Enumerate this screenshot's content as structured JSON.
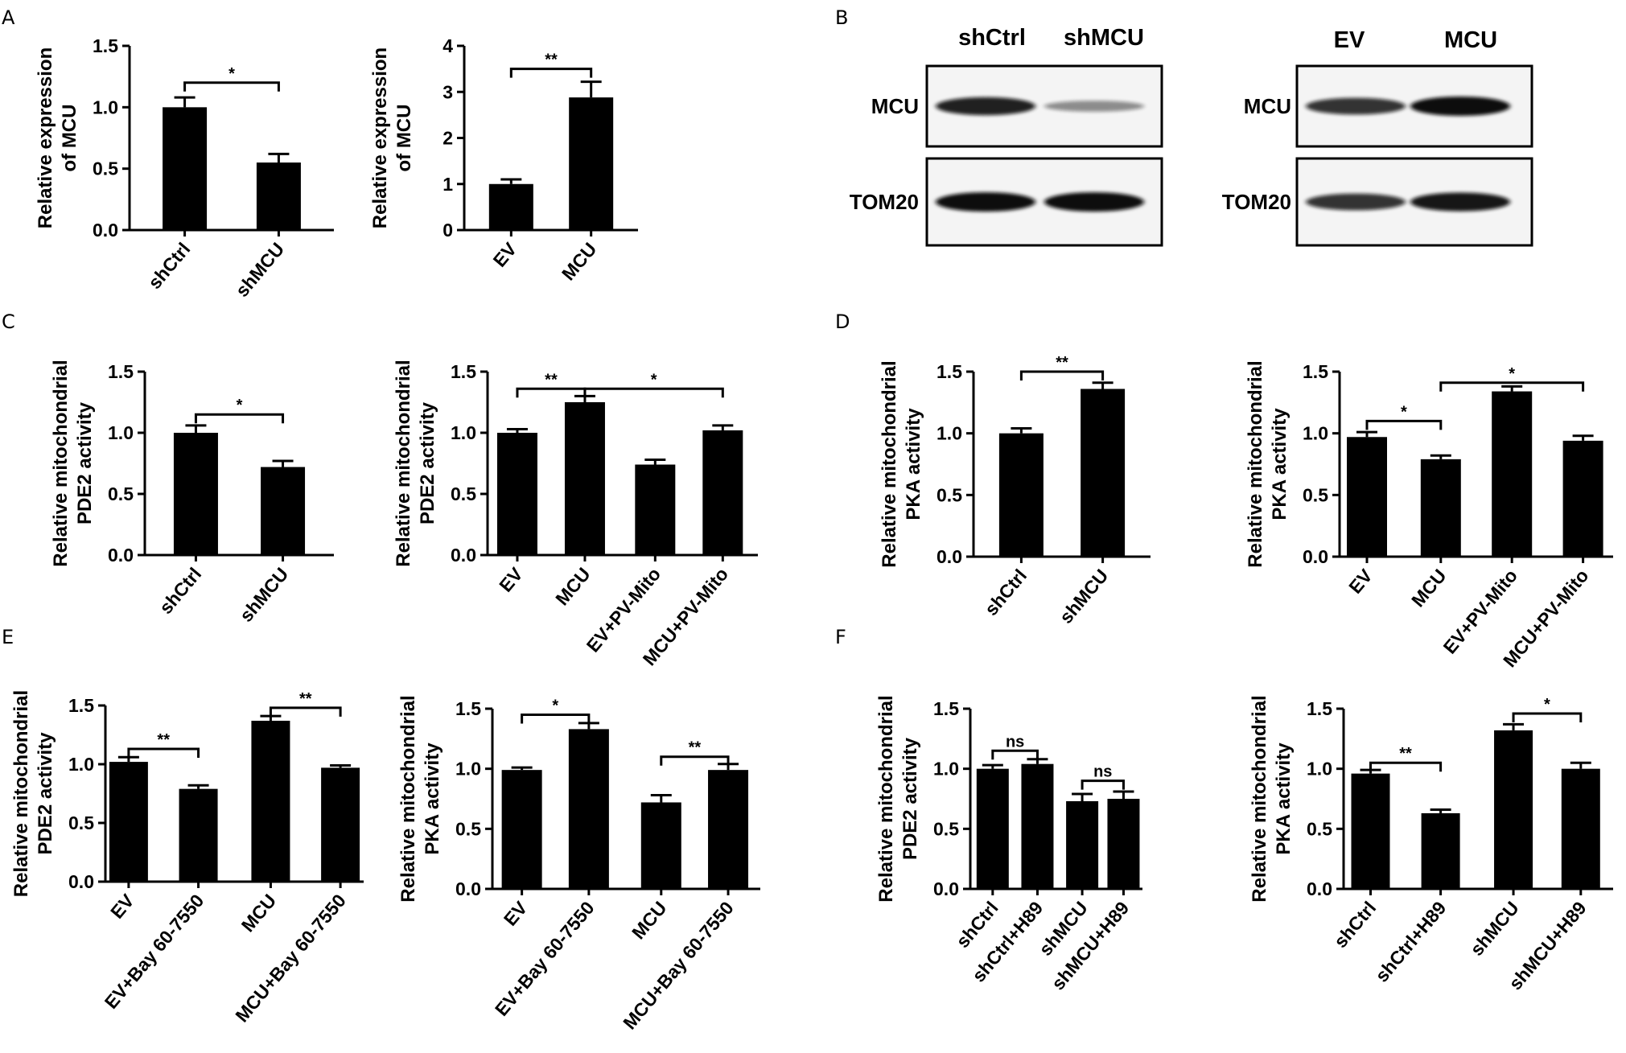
{
  "panel_letters": [
    "A",
    "B",
    "C",
    "D",
    "E",
    "F"
  ],
  "chart_data": [
    {
      "id": "A1",
      "type": "bar",
      "panel": "A",
      "ylabel_lines": [
        "Relative expression",
        "of MCU"
      ],
      "ylim": [
        0,
        1.5
      ],
      "yticks": [
        "0.0",
        "0.5",
        "1.0",
        "1.5"
      ],
      "categories": [
        "shCtrl",
        "shMCU"
      ],
      "values": [
        1.0,
        0.55
      ],
      "errors": [
        0.08,
        0.07
      ],
      "significance": [
        {
          "from": 0,
          "to": 1,
          "label": "*",
          "y": 1.2
        }
      ]
    },
    {
      "id": "A2",
      "type": "bar",
      "panel": "A",
      "ylabel_lines": [
        "Relative expression",
        "of MCU"
      ],
      "ylim": [
        0,
        4
      ],
      "yticks": [
        "0",
        "1",
        "2",
        "3",
        "4"
      ],
      "categories": [
        "EV",
        "MCU"
      ],
      "values": [
        1.0,
        2.88
      ],
      "errors": [
        0.1,
        0.34
      ],
      "significance": [
        {
          "from": 0,
          "to": 1,
          "label": "**",
          "y": 3.5
        }
      ]
    },
    {
      "id": "C1",
      "type": "bar",
      "panel": "C",
      "ylabel_lines": [
        "Relative mitochondrial",
        "PDE2 activity"
      ],
      "ylim": [
        0,
        1.5
      ],
      "yticks": [
        "0.0",
        "0.5",
        "1.0",
        "1.5"
      ],
      "categories": [
        "shCtrl",
        "shMCU"
      ],
      "values": [
        1.0,
        0.72
      ],
      "errors": [
        0.06,
        0.05
      ],
      "significance": [
        {
          "from": 0,
          "to": 1,
          "label": "*",
          "y": 1.15
        }
      ]
    },
    {
      "id": "C2",
      "type": "bar",
      "panel": "C",
      "ylabel_lines": [
        "Relative mitochondrial",
        "PDE2 activity"
      ],
      "ylim": [
        0,
        1.5
      ],
      "yticks": [
        "0.0",
        "0.5",
        "1.0",
        "1.5"
      ],
      "categories": [
        "EV",
        "MCU",
        "EV+PV-Mito",
        "MCU+PV-Mito"
      ],
      "values": [
        1.0,
        1.25,
        0.74,
        1.02
      ],
      "errors": [
        0.03,
        0.05,
        0.04,
        0.04
      ],
      "significance": [
        {
          "from": 0,
          "to": 1,
          "label": "**",
          "y": 1.36
        },
        {
          "from": 1,
          "to": 3,
          "label": "*",
          "y": 1.36
        }
      ]
    },
    {
      "id": "D1",
      "type": "bar",
      "panel": "D",
      "ylabel_lines": [
        "Relative mitochondrial",
        "PKA activity"
      ],
      "ylim": [
        0,
        1.5
      ],
      "yticks": [
        "0.0",
        "0.5",
        "1.0",
        "1.5"
      ],
      "categories": [
        "shCtrl",
        "shMCU"
      ],
      "values": [
        1.0,
        1.36
      ],
      "errors": [
        0.04,
        0.05
      ],
      "significance": [
        {
          "from": 0,
          "to": 1,
          "label": "**",
          "y": 1.5
        }
      ]
    },
    {
      "id": "D2",
      "type": "bar",
      "panel": "D",
      "ylabel_lines": [
        "Relative mitochondrial",
        "PKA activity"
      ],
      "ylim": [
        0,
        1.5
      ],
      "yticks": [
        "0.0",
        "0.5",
        "1.0",
        "1.5"
      ],
      "categories": [
        "EV",
        "MCU",
        "EV+PV-Mito",
        "MCU+PV-Mito"
      ],
      "values": [
        0.97,
        0.79,
        1.34,
        0.94
      ],
      "errors": [
        0.04,
        0.03,
        0.04,
        0.04
      ],
      "significance": [
        {
          "from": 0,
          "to": 1,
          "label": "*",
          "y": 1.1
        },
        {
          "from": 1,
          "to": 3,
          "label": "*",
          "y": 1.41
        }
      ]
    },
    {
      "id": "E1",
      "type": "bar",
      "panel": "E",
      "ylabel_lines": [
        "Relative mitochondrial",
        "PDE2 activity"
      ],
      "ylim": [
        0,
        1.5
      ],
      "yticks": [
        "0.0",
        "0.5",
        "1.0",
        "1.5"
      ],
      "categories": [
        "EV",
        "EV+Bay 60-7550",
        "MCU",
        "MCU+Bay 60-7550"
      ],
      "values": [
        1.02,
        0.79,
        1.37,
        0.97
      ],
      "errors": [
        0.04,
        0.03,
        0.04,
        0.02
      ],
      "significance": [
        {
          "from": 0,
          "to": 1,
          "label": "**",
          "y": 1.13
        },
        {
          "from": 2,
          "to": 3,
          "label": "**",
          "y": 1.48
        }
      ]
    },
    {
      "id": "E2",
      "type": "bar",
      "panel": "E",
      "ylabel_lines": [
        "Relative mitochondrial",
        "PKA activity"
      ],
      "ylim": [
        0,
        1.5
      ],
      "yticks": [
        "0.0",
        "0.5",
        "1.0",
        "1.5"
      ],
      "categories": [
        "EV",
        "EV+Bay 60-7550",
        "MCU",
        "MCU+Bay 60-7550"
      ],
      "values": [
        0.99,
        1.33,
        0.72,
        0.99
      ],
      "errors": [
        0.02,
        0.05,
        0.06,
        0.05
      ],
      "significance": [
        {
          "from": 0,
          "to": 1,
          "label": "*",
          "y": 1.45
        },
        {
          "from": 2,
          "to": 3,
          "label": "**",
          "y": 1.1
        }
      ]
    },
    {
      "id": "F1",
      "type": "bar",
      "panel": "F",
      "ylabel_lines": [
        "Relative mitochondrial",
        "PDE2 activity"
      ],
      "ylim": [
        0,
        1.5
      ],
      "yticks": [
        "0.0",
        "0.5",
        "1.0",
        "1.5"
      ],
      "categories": [
        "shCtrl",
        "shCtrl+H89",
        "shMCU",
        "shMCU+H89"
      ],
      "values": [
        1.0,
        1.04,
        0.73,
        0.75
      ],
      "errors": [
        0.03,
        0.04,
        0.06,
        0.06
      ],
      "significance": [
        {
          "from": 0,
          "to": 1,
          "label": "ns",
          "y": 1.15
        },
        {
          "from": 2,
          "to": 3,
          "label": "ns",
          "y": 0.9
        }
      ]
    },
    {
      "id": "F2",
      "type": "bar",
      "panel": "F",
      "ylabel_lines": [
        "Relative mitochondrial",
        "PKA activity"
      ],
      "ylim": [
        0,
        1.5
      ],
      "yticks": [
        "0.0",
        "0.5",
        "1.0",
        "1.5"
      ],
      "categories": [
        "shCtrl",
        "shCtrl+H89",
        "shMCU",
        "shMCU+H89"
      ],
      "values": [
        0.96,
        0.63,
        1.32,
        1.0
      ],
      "errors": [
        0.03,
        0.03,
        0.05,
        0.05
      ],
      "significance": [
        {
          "from": 0,
          "to": 1,
          "label": "**",
          "y": 1.05
        },
        {
          "from": 2,
          "to": 3,
          "label": "*",
          "y": 1.46
        }
      ]
    }
  ],
  "western_blots": [
    {
      "id": "B1",
      "lanes": [
        "shCtrl",
        "shMCU"
      ],
      "rows": [
        {
          "label": "MCU",
          "intensities": [
            0.9,
            0.35
          ]
        },
        {
          "label": "TOM20",
          "intensities": [
            1.0,
            1.0
          ]
        }
      ]
    },
    {
      "id": "B2",
      "lanes": [
        "EV",
        "MCU"
      ],
      "rows": [
        {
          "label": "MCU",
          "intensities": [
            0.8,
            1.0
          ]
        },
        {
          "label": "TOM20",
          "intensities": [
            0.8,
            0.95
          ]
        }
      ]
    }
  ]
}
